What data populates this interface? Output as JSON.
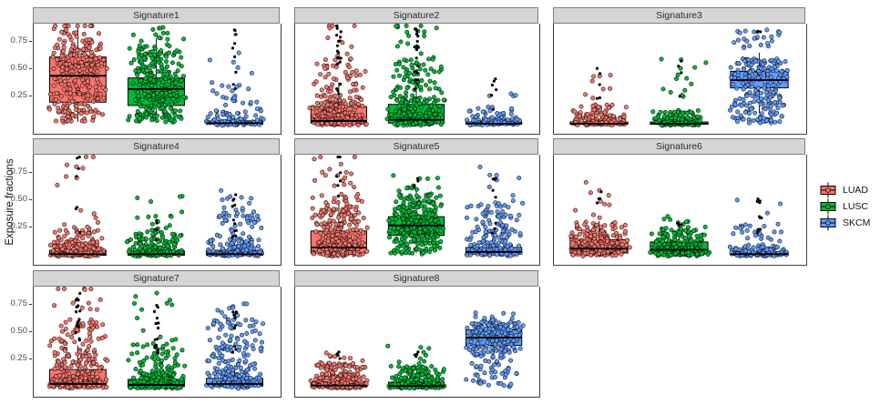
{
  "figure": {
    "ylabel": "Exposure fractions",
    "yticks": [
      {
        "label": "0.25",
        "value": 0.25
      },
      {
        "label": "0.50",
        "value": 0.5
      },
      {
        "label": "0.75",
        "value": 0.75
      }
    ],
    "strip_bg": "#D5D5D5",
    "panel_border": "#3F3F3F",
    "background": "#FFFFFF"
  },
  "legend": {
    "items": [
      {
        "label": "LUAD",
        "color": "#F8766D"
      },
      {
        "label": "LUSC",
        "color": "#00BA38"
      },
      {
        "label": "SKCM",
        "color": "#619CFF"
      }
    ]
  },
  "chart_data": {
    "type": "boxplot+jitter",
    "title": "",
    "xlabel": "",
    "ylabel": "Exposure fractions",
    "ylim": [
      0,
      1
    ],
    "yticks": [
      0.25,
      0.5,
      0.75
    ],
    "grid": false,
    "legend_position": "right",
    "groups": [
      "LUAD",
      "LUSC",
      "SKCM"
    ],
    "group_colors": {
      "LUAD": "#F8766D",
      "LUSC": "#00BA38",
      "SKCM": "#619CFF"
    },
    "facets": [
      {
        "label": "Signature1",
        "groups": [
          {
            "name": "LUAD",
            "box": {
              "lo": 0.02,
              "q1": 0.2,
              "med": 0.44,
              "q3": 0.61,
              "hi": 0.95
            },
            "points": {
              "n": 320,
              "quantiles": [
                0.02,
                0.25,
                0.45,
                0.6,
                0.78,
                0.95
              ]
            },
            "outliers": {
              "n": 0,
              "range": [
                0,
                0
              ]
            }
          },
          {
            "name": "LUSC",
            "box": {
              "lo": 0.02,
              "q1": 0.17,
              "med": 0.32,
              "q3": 0.42,
              "hi": 0.78
            },
            "points": {
              "n": 320,
              "quantiles": [
                0.02,
                0.2,
                0.35,
                0.5,
                0.68,
                0.88
              ]
            },
            "outliers": {
              "n": 0,
              "range": [
                0,
                0
              ]
            }
          },
          {
            "name": "SKCM",
            "box": {
              "lo": 0.0,
              "q1": 0.0,
              "med": 0.01,
              "q3": 0.03,
              "hi": 0.07
            },
            "points": {
              "n": 110,
              "quantiles": [
                0,
                0.01,
                0.04,
                0.13,
                0.35,
                0.72
              ]
            },
            "outliers": {
              "n": 10,
              "range": [
                0.3,
                0.92
              ]
            }
          }
        ]
      },
      {
        "label": "Signature2",
        "groups": [
          {
            "name": "LUAD",
            "box": {
              "lo": 0.0,
              "q1": 0.01,
              "med": 0.03,
              "q3": 0.16,
              "hi": 0.38
            },
            "points": {
              "n": 300,
              "quantiles": [
                0,
                0.02,
                0.08,
                0.22,
                0.55,
                0.97
              ]
            },
            "outliers": {
              "n": 22,
              "range": [
                0.25,
                0.95
              ]
            }
          },
          {
            "name": "LUSC",
            "box": {
              "lo": 0.0,
              "q1": 0.01,
              "med": 0.04,
              "q3": 0.18,
              "hi": 0.42
            },
            "points": {
              "n": 300,
              "quantiles": [
                0,
                0.03,
                0.1,
                0.25,
                0.6,
                0.97
              ]
            },
            "outliers": {
              "n": 20,
              "range": [
                0.3,
                0.92
              ]
            }
          },
          {
            "name": "SKCM",
            "box": {
              "lo": 0.0,
              "q1": 0.0,
              "med": 0.005,
              "q3": 0.02,
              "hi": 0.05
            },
            "points": {
              "n": 100,
              "quantiles": [
                0,
                0.005,
                0.02,
                0.05,
                0.13,
                0.28
              ]
            },
            "outliers": {
              "n": 6,
              "range": [
                0.1,
                0.45
              ]
            }
          }
        ]
      },
      {
        "label": "Signature3",
        "groups": [
          {
            "name": "LUAD",
            "box": {
              "lo": 0.0,
              "q1": 0.0,
              "med": 0.005,
              "q3": 0.02,
              "hi": 0.05
            },
            "points": {
              "n": 170,
              "quantiles": [
                0,
                0.01,
                0.03,
                0.08,
                0.17,
                0.5
              ]
            },
            "outliers": {
              "n": 5,
              "range": [
                0.15,
                0.52
              ]
            }
          },
          {
            "name": "LUSC",
            "box": {
              "lo": 0.0,
              "q1": 0.0,
              "med": 0.005,
              "q3": 0.02,
              "hi": 0.05
            },
            "points": {
              "n": 180,
              "quantiles": [
                0,
                0.005,
                0.02,
                0.06,
                0.12,
                0.62
              ]
            },
            "outliers": {
              "n": 4,
              "range": [
                0.15,
                0.6
              ]
            }
          },
          {
            "name": "SKCM",
            "box": {
              "lo": 0.1,
              "q1": 0.33,
              "med": 0.4,
              "q3": 0.48,
              "hi": 0.65
            },
            "points": {
              "n": 260,
              "quantiles": [
                0,
                0.18,
                0.38,
                0.5,
                0.6,
                0.85
              ]
            },
            "outliers": {
              "n": 3,
              "range": [
                0.6,
                0.88
              ]
            }
          }
        ]
      },
      {
        "label": "Signature4",
        "groups": [
          {
            "name": "LUAD",
            "box": {
              "lo": 0.0,
              "q1": 0.0,
              "med": 0.01,
              "q3": 0.045,
              "hi": 0.11
            },
            "points": {
              "n": 210,
              "quantiles": [
                0,
                0.01,
                0.05,
                0.12,
                0.27,
                0.93
              ]
            },
            "outliers": {
              "n": 7,
              "range": [
                0.15,
                0.93
              ]
            }
          },
          {
            "name": "LUSC",
            "box": {
              "lo": 0.0,
              "q1": 0.0,
              "med": 0.01,
              "q3": 0.04,
              "hi": 0.1
            },
            "points": {
              "n": 200,
              "quantiles": [
                0,
                0.01,
                0.04,
                0.1,
                0.22,
                0.58
              ]
            },
            "outliers": {
              "n": 5,
              "range": [
                0.12,
                0.37
              ]
            }
          },
          {
            "name": "SKCM",
            "box": {
              "lo": 0.0,
              "q1": 0.0,
              "med": 0.01,
              "q3": 0.045,
              "hi": 0.11
            },
            "points": {
              "n": 190,
              "quantiles": [
                0,
                0.01,
                0.05,
                0.14,
                0.42,
                0.6
              ]
            },
            "outliers": {
              "n": 12,
              "range": [
                0.15,
                0.6
              ]
            }
          }
        ]
      },
      {
        "label": "Signature5",
        "groups": [
          {
            "name": "LUAD",
            "box": {
              "lo": 0.0,
              "q1": 0.02,
              "med": 0.07,
              "q3": 0.22,
              "hi": 0.5
            },
            "points": {
              "n": 320,
              "quantiles": [
                0,
                0.05,
                0.13,
                0.3,
                0.55,
                0.93
              ]
            },
            "outliers": {
              "n": 7,
              "range": [
                0.5,
                0.95
              ]
            }
          },
          {
            "name": "LUSC",
            "box": {
              "lo": 0.02,
              "q1": 0.18,
              "med": 0.27,
              "q3": 0.35,
              "hi": 0.6
            },
            "points": {
              "n": 340,
              "quantiles": [
                0.01,
                0.17,
                0.27,
                0.38,
                0.55,
                0.73
              ]
            },
            "outliers": {
              "n": 4,
              "range": [
                0.6,
                0.75
              ]
            }
          },
          {
            "name": "SKCM",
            "box": {
              "lo": 0.0,
              "q1": 0.01,
              "med": 0.03,
              "q3": 0.07,
              "hi": 0.16
            },
            "points": {
              "n": 190,
              "quantiles": [
                0,
                0.03,
                0.1,
                0.26,
                0.52,
                0.9
              ]
            },
            "outliers": {
              "n": 9,
              "range": [
                0.2,
                0.75
              ]
            }
          }
        ]
      },
      {
        "label": "Signature6",
        "groups": [
          {
            "name": "LUAD",
            "box": {
              "lo": 0.0,
              "q1": 0.02,
              "med": 0.06,
              "q3": 0.14,
              "hi": 0.31
            },
            "points": {
              "n": 250,
              "quantiles": [
                0,
                0.03,
                0.08,
                0.17,
                0.3,
                0.72
              ]
            },
            "outliers": {
              "n": 4,
              "range": [
                0.3,
                0.72
              ]
            }
          },
          {
            "name": "LUSC",
            "box": {
              "lo": 0.0,
              "q1": 0.015,
              "med": 0.05,
              "q3": 0.12,
              "hi": 0.28
            },
            "points": {
              "n": 250,
              "quantiles": [
                0,
                0.02,
                0.07,
                0.14,
                0.26,
                0.37
              ]
            },
            "outliers": {
              "n": 3,
              "range": [
                0.26,
                0.37
              ]
            }
          },
          {
            "name": "SKCM",
            "box": {
              "lo": 0.0,
              "q1": 0.0,
              "med": 0.01,
              "q3": 0.03,
              "hi": 0.07
            },
            "points": {
              "n": 140,
              "quantiles": [
                0,
                0.01,
                0.03,
                0.09,
                0.28,
                0.55
              ]
            },
            "outliers": {
              "n": 11,
              "range": [
                0.18,
                0.55
              ]
            }
          }
        ]
      },
      {
        "label": "Signature7",
        "groups": [
          {
            "name": "LUAD",
            "box": {
              "lo": 0.0,
              "q1": 0.01,
              "med": 0.03,
              "q3": 0.16,
              "hi": 0.38
            },
            "points": {
              "n": 300,
              "quantiles": [
                0,
                0.03,
                0.1,
                0.3,
                0.6,
                0.95
              ]
            },
            "outliers": {
              "n": 18,
              "range": [
                0.4,
                0.95
              ]
            }
          },
          {
            "name": "LUSC",
            "box": {
              "lo": 0.0,
              "q1": 0.005,
              "med": 0.02,
              "q3": 0.07,
              "hi": 0.17
            },
            "points": {
              "n": 270,
              "quantiles": [
                0,
                0.01,
                0.05,
                0.13,
                0.4,
                0.97
              ]
            },
            "outliers": {
              "n": 14,
              "range": [
                0.28,
                0.75
              ]
            }
          },
          {
            "name": "SKCM",
            "box": {
              "lo": 0.0,
              "q1": 0.01,
              "med": 0.03,
              "q3": 0.08,
              "hi": 0.2
            },
            "points": {
              "n": 240,
              "quantiles": [
                0,
                0.04,
                0.14,
                0.38,
                0.62,
                0.78
              ]
            },
            "outliers": {
              "n": 10,
              "range": [
                0.3,
                0.7
              ]
            }
          }
        ]
      },
      {
        "label": "Signature8",
        "groups": [
          {
            "name": "LUAD",
            "box": {
              "lo": 0.0,
              "q1": 0.0,
              "med": 0.015,
              "q3": 0.05,
              "hi": 0.12
            },
            "points": {
              "n": 240,
              "quantiles": [
                0,
                0.01,
                0.04,
                0.11,
                0.22,
                0.32
              ]
            },
            "outliers": {
              "n": 4,
              "range": [
                0.2,
                0.32
              ]
            }
          },
          {
            "name": "LUSC",
            "box": {
              "lo": 0.0,
              "q1": 0.0,
              "med": 0.01,
              "q3": 0.045,
              "hi": 0.11
            },
            "points": {
              "n": 240,
              "quantiles": [
                0,
                0.01,
                0.035,
                0.1,
                0.2,
                0.37
              ]
            },
            "outliers": {
              "n": 4,
              "range": [
                0.22,
                0.37
              ]
            }
          },
          {
            "name": "SKCM",
            "box": {
              "lo": 0.28,
              "q1": 0.38,
              "med": 0.45,
              "q3": 0.52,
              "hi": 0.63
            },
            "points": {
              "n": 270,
              "quantiles": [
                0.01,
                0.3,
                0.44,
                0.53,
                0.6,
                0.68
              ]
            },
            "outliers": {
              "n": 0,
              "range": [
                0,
                0
              ]
            }
          }
        ]
      }
    ]
  }
}
